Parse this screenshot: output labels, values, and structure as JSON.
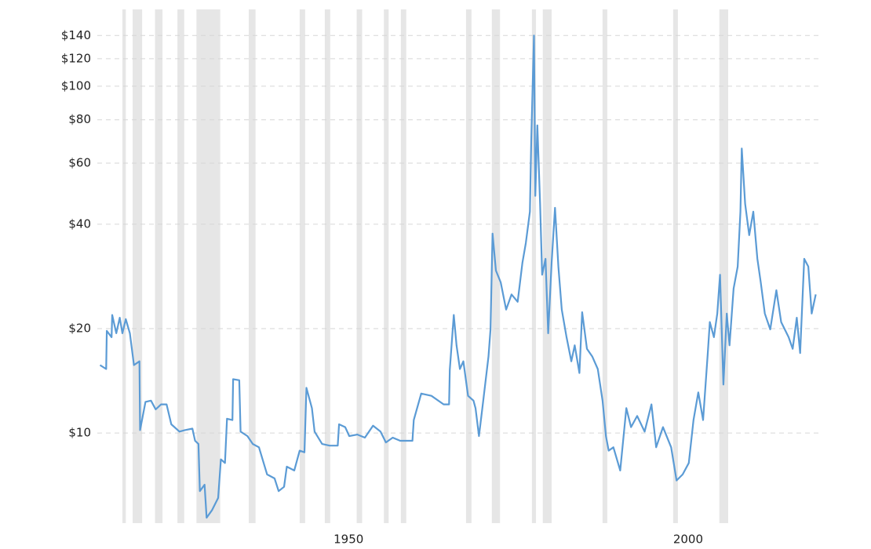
{
  "chart_data": {
    "type": "line",
    "log_scale": true,
    "grid": true,
    "xlim": [
      1913,
      2020
    ],
    "xticks": [
      1950,
      2000
    ],
    "ylim": [
      5.5,
      150
    ],
    "yticks": [
      {
        "value": 10,
        "label": "$10"
      },
      {
        "value": 20,
        "label": "$20"
      },
      {
        "value": 40,
        "label": "$40"
      },
      {
        "value": 60,
        "label": "$60"
      },
      {
        "value": 80,
        "label": "$80"
      },
      {
        "value": 100,
        "label": "$100"
      },
      {
        "value": 120,
        "label": "$120"
      },
      {
        "value": 140,
        "label": "$140"
      }
    ],
    "band_color": "#e6e6e6",
    "bands": [
      [
        1916.7,
        1917.2
      ],
      [
        1918.2,
        1919.6
      ],
      [
        1921.5,
        1922.6
      ],
      [
        1924.8,
        1925.8
      ],
      [
        1927.6,
        1931.1
      ],
      [
        1935.3,
        1936.3
      ],
      [
        1942.8,
        1943.6
      ],
      [
        1946.5,
        1947.3
      ],
      [
        1951.2,
        1952.0
      ],
      [
        1955.2,
        1955.9
      ],
      [
        1957.7,
        1958.5
      ],
      [
        1967.3,
        1968.1
      ],
      [
        1971.1,
        1972.3
      ],
      [
        1977.0,
        1977.6
      ],
      [
        1978.6,
        1979.9
      ],
      [
        1987.4,
        1988.1
      ],
      [
        1997.8,
        1998.5
      ],
      [
        2004.6,
        2005.9
      ]
    ],
    "x": [
      1913.4,
      1914.3,
      1914.4,
      1915.1,
      1915.2,
      1915.8,
      1916.3,
      1916.7,
      1917.2,
      1917.8,
      1918.4,
      1919.2,
      1919.3,
      1920.1,
      1920.9,
      1921.6,
      1922.4,
      1923.2,
      1923.9,
      1925.1,
      1925.9,
      1927.0,
      1927.4,
      1927.9,
      1928.1,
      1928.8,
      1929.1,
      1929.9,
      1930.8,
      1931.2,
      1931.8,
      1932.1,
      1932.9,
      1933.0,
      1933.9,
      1934.1,
      1935.1,
      1935.9,
      1936.8,
      1937.5,
      1938.0,
      1939.1,
      1939.7,
      1940.5,
      1940.9,
      1942.0,
      1942.8,
      1943.5,
      1943.8,
      1944.6,
      1945.0,
      1946.1,
      1947.2,
      1948.4,
      1948.6,
      1949.5,
      1950.1,
      1951.3,
      1952.4,
      1953.6,
      1954.7,
      1955.5,
      1956.5,
      1957.6,
      1959.4,
      1959.6,
      1960.7,
      1962.2,
      1964.0,
      1964.8,
      1964.9,
      1965.5,
      1965.9,
      1966.4,
      1966.9,
      1967.6,
      1968.4,
      1968.7,
      1969.2,
      1969.7,
      1970.6,
      1970.9,
      1971.2,
      1971.7,
      1972.4,
      1973.2,
      1974.0,
      1974.9,
      1975.6,
      1976.1,
      1976.7,
      1976.9,
      1977.3,
      1977.5,
      1977.8,
      1978.2,
      1978.5,
      1979.0,
      1979.4,
      1979.9,
      1980.4,
      1980.9,
      1981.4,
      1982.1,
      1982.8,
      1983.3,
      1984.0,
      1984.4,
      1985.1,
      1985.9,
      1986.7,
      1987.4,
      1987.9,
      1988.3,
      1989.0,
      1990.0,
      1990.9,
      1991.6,
      1992.5,
      1993.6,
      1994.6,
      1995.3,
      1996.3,
      1997.5,
      1998.3,
      1999.2,
      2000.1,
      2000.8,
      2001.5,
      2002.2,
      2002.9,
      2003.2,
      2003.8,
      2004.3,
      2004.7,
      2005.2,
      2005.7,
      2006.1,
      2006.7,
      2007.3,
      2007.7,
      2007.9,
      2008.4,
      2009.0,
      2009.6,
      2010.2,
      2010.7,
      2011.3,
      2012.1,
      2013.0,
      2013.7,
      2014.8,
      2015.4,
      2016.0,
      2016.5,
      2017.1,
      2017.7,
      2018.2,
      2018.8
    ],
    "series": [
      {
        "color": "#5b9bd5",
        "values": [
          15.7,
          15.3,
          19.7,
          18.9,
          21.9,
          19.4,
          21.5,
          19.4,
          21.3,
          19.4,
          15.7,
          16.1,
          10.2,
          12.3,
          12.4,
          11.7,
          12.1,
          12.1,
          10.6,
          10.1,
          10.2,
          10.3,
          9.5,
          9.3,
          6.8,
          7.1,
          5.7,
          6.0,
          6.5,
          8.4,
          8.2,
          11.0,
          10.9,
          14.3,
          14.2,
          10.1,
          9.8,
          9.3,
          9.1,
          8.2,
          7.6,
          7.4,
          6.8,
          7.0,
          8.0,
          7.8,
          8.9,
          8.8,
          13.5,
          11.8,
          10.1,
          9.3,
          9.2,
          9.2,
          10.6,
          10.4,
          9.8,
          9.9,
          9.7,
          10.5,
          10.1,
          9.4,
          9.7,
          9.5,
          9.5,
          10.9,
          13.0,
          12.8,
          12.1,
          12.1,
          15.2,
          21.9,
          17.9,
          15.3,
          16.1,
          12.8,
          12.4,
          11.8,
          9.8,
          11.8,
          16.6,
          19.9,
          37.6,
          29.4,
          27.2,
          22.7,
          25.1,
          23.9,
          31.0,
          35.3,
          43.5,
          69.5,
          140,
          48.3,
          77.1,
          45.8,
          28.6,
          31.8,
          19.4,
          31.0,
          44.6,
          30.2,
          22.7,
          18.9,
          16.1,
          17.9,
          14.9,
          22.3,
          17.5,
          16.6,
          15.3,
          12.4,
          9.8,
          8.9,
          9.1,
          7.8,
          11.8,
          10.4,
          11.2,
          10.1,
          12.1,
          9.1,
          10.4,
          9.1,
          7.3,
          7.6,
          8.2,
          10.9,
          13.1,
          10.9,
          17.0,
          20.9,
          18.9,
          22.1,
          28.6,
          13.8,
          22.1,
          17.9,
          26.1,
          30.2,
          43.5,
          66.1,
          45.8,
          37.2,
          43.5,
          31.8,
          27.2,
          22.1,
          19.9,
          25.8,
          20.9,
          18.9,
          17.5,
          21.5,
          17.0,
          31.8,
          30.2,
          22.1,
          25.1
        ]
      }
    ]
  }
}
